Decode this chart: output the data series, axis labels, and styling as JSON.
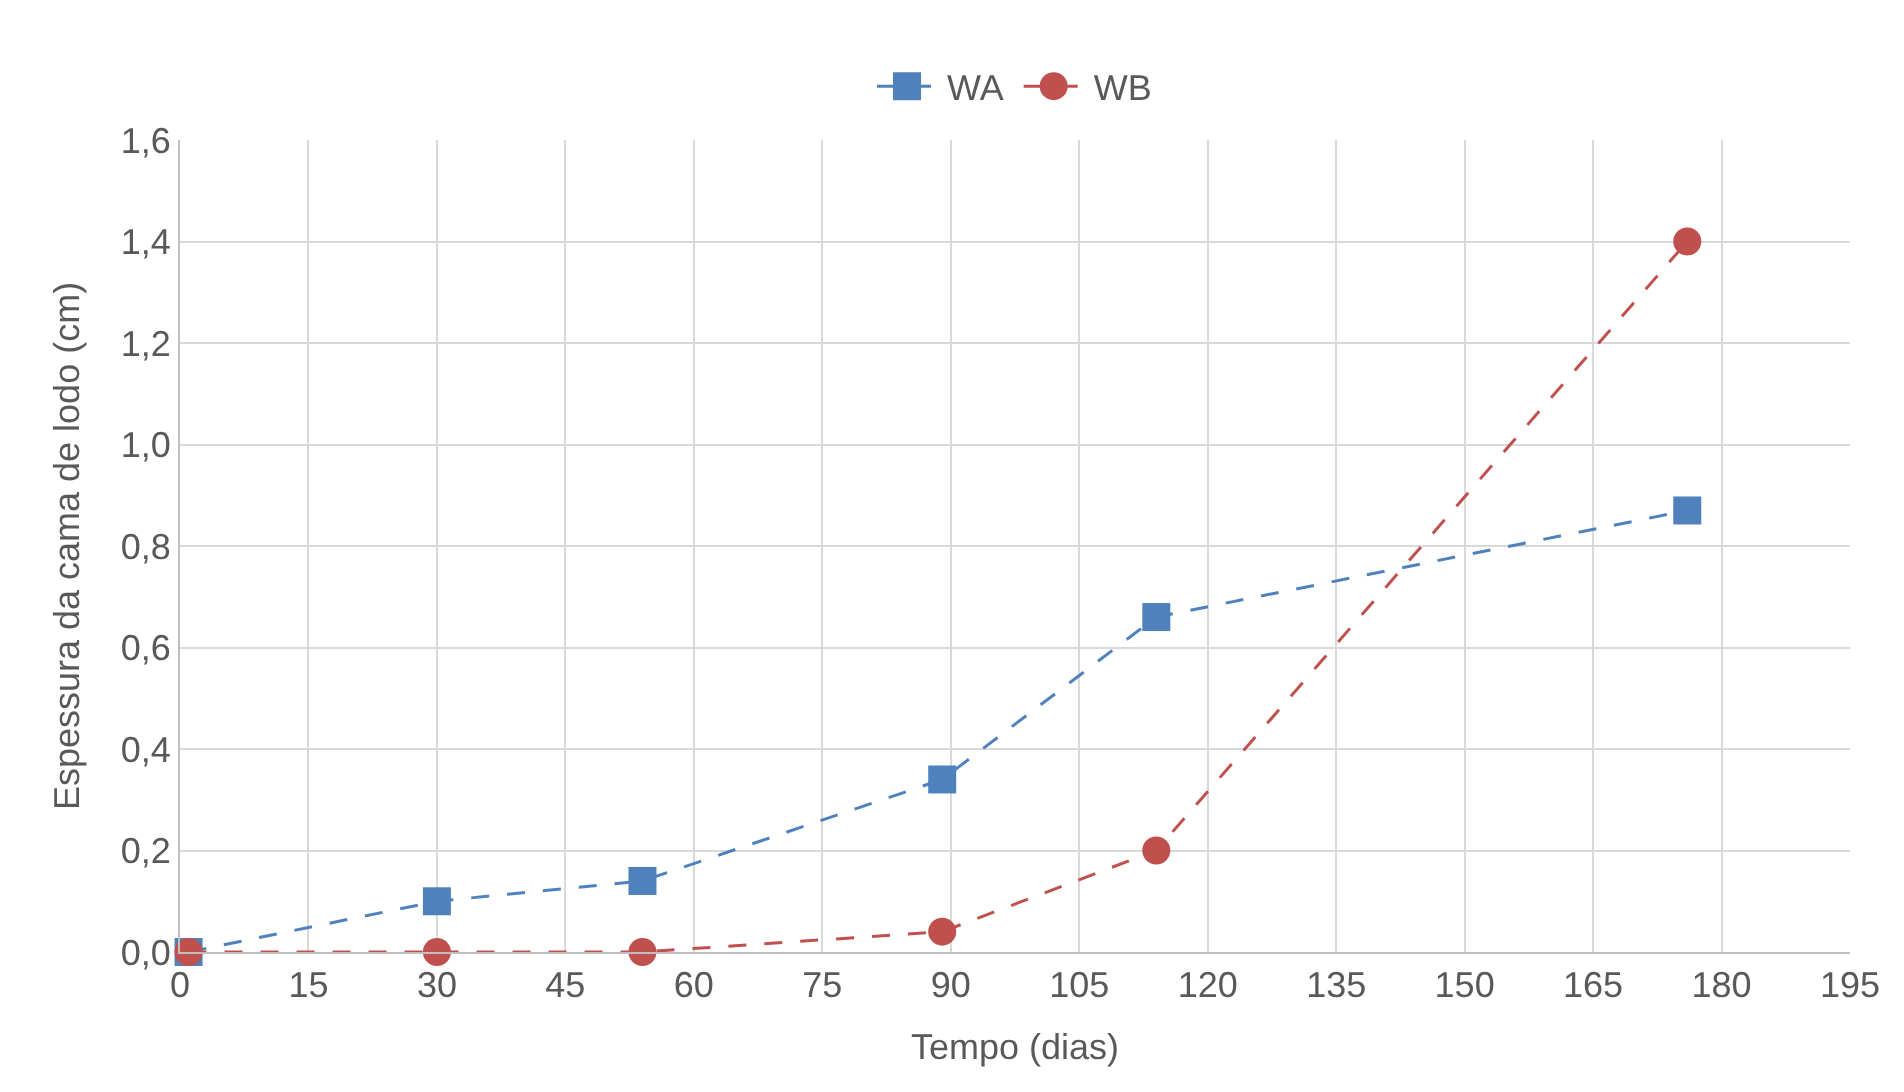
{
  "chart_data": {
    "type": "line",
    "xlabel": "Tempo (dias)",
    "ylabel": "Espessura da cama de lodo (cm)",
    "x": [
      1,
      30,
      54,
      89,
      114,
      176
    ],
    "series": [
      {
        "name": "WA",
        "color": "#4f81bd",
        "marker": "square",
        "values": [
          0,
          0.1,
          0.14,
          0.34,
          0.66,
          0.87
        ]
      },
      {
        "name": "WB",
        "color": "#c0504d",
        "marker": "circle",
        "values": [
          0,
          0,
          0,
          0.04,
          0.2,
          1.4
        ]
      }
    ],
    "xlim": [
      0,
      195
    ],
    "xticks": [
      0,
      15,
      30,
      45,
      60,
      75,
      90,
      105,
      120,
      135,
      150,
      165,
      180,
      195
    ],
    "ylim": [
      0,
      1.6
    ],
    "yticks": [
      {
        "value": 0,
        "label": "0,0"
      },
      {
        "value": 0.2,
        "label": "0,2"
      },
      {
        "value": 0.4,
        "label": "0,4"
      },
      {
        "value": 0.6,
        "label": "0,6"
      },
      {
        "value": 0.8,
        "label": "0,8"
      },
      {
        "value": 1.0,
        "label": "1,0"
      },
      {
        "value": 1.2,
        "label": "1,2"
      },
      {
        "value": 1.4,
        "label": "1,4"
      },
      {
        "value": 1.6,
        "label": "1,6"
      }
    ],
    "grid": true,
    "legend": "top",
    "line_style": "dashed"
  }
}
